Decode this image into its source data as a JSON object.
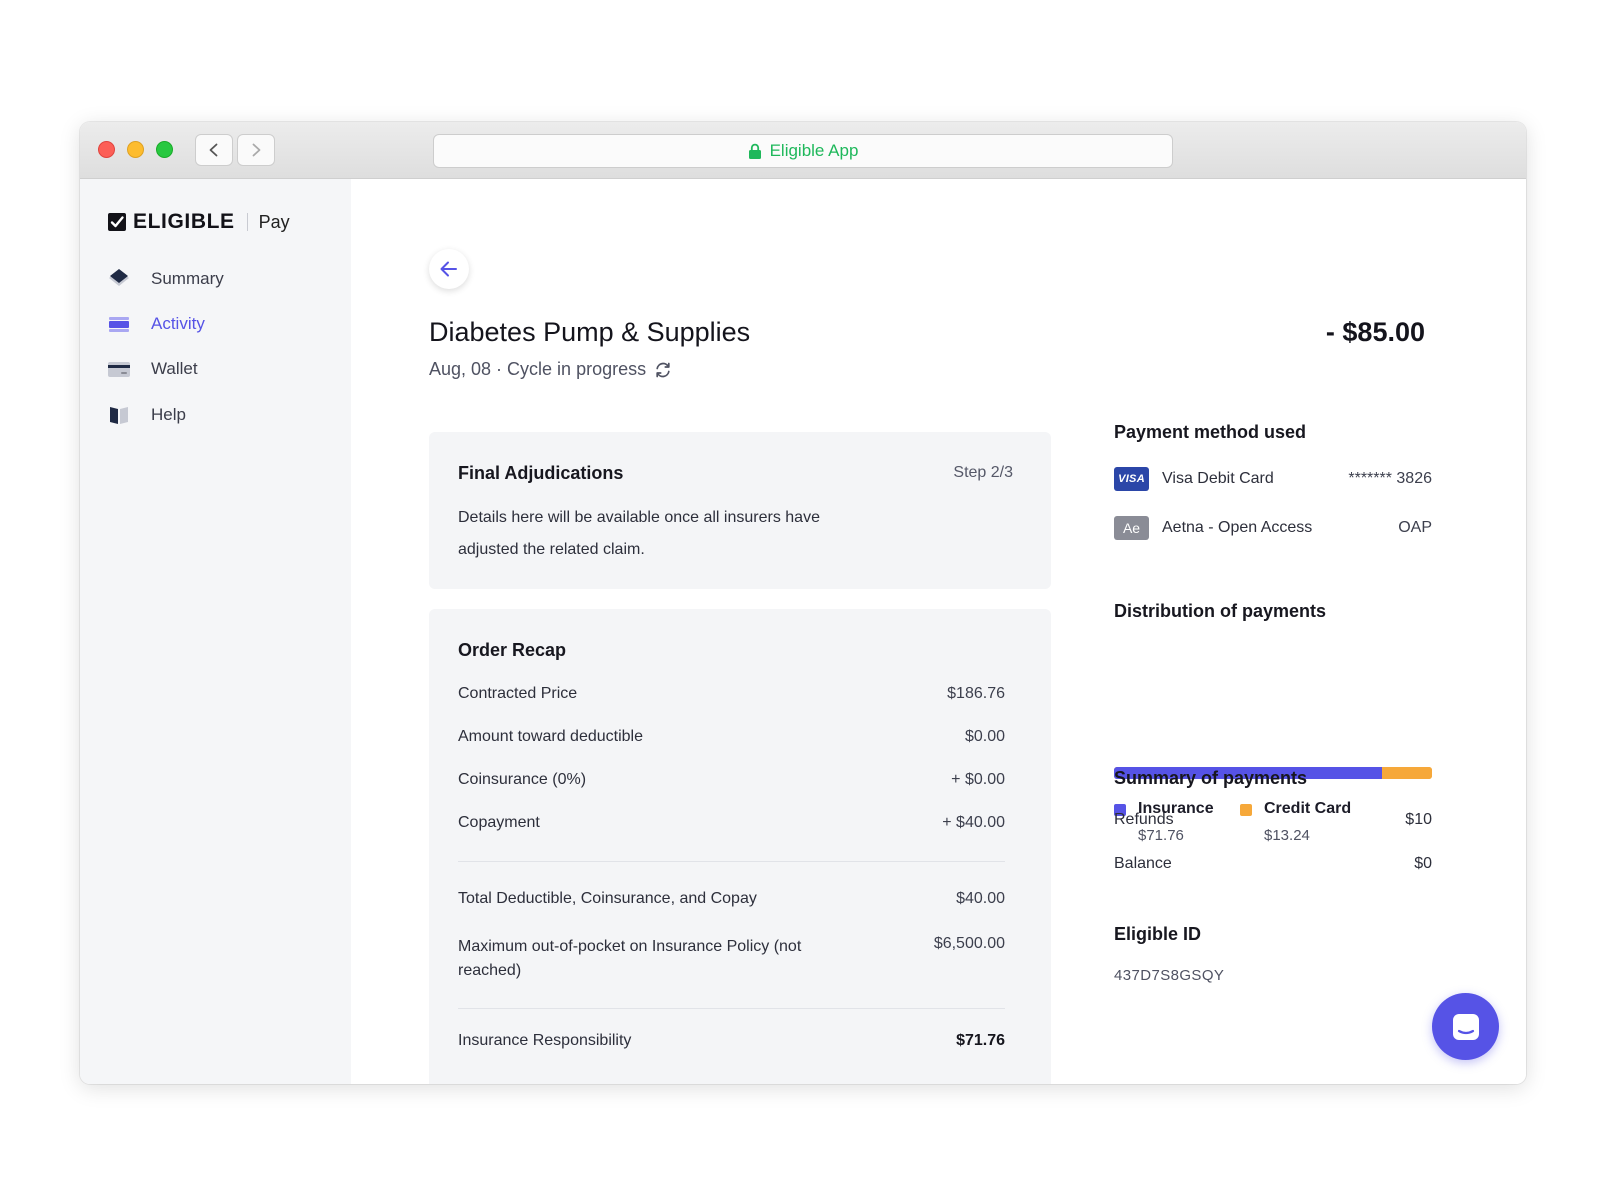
{
  "browser": {
    "url_label": "Eligible App"
  },
  "sidebar": {
    "brand_name": "ELIGIBLE",
    "brand_product": "Pay",
    "items": [
      {
        "label": "Summary",
        "icon": "layers-icon",
        "active": false
      },
      {
        "label": "Activity",
        "icon": "activity-icon",
        "active": true
      },
      {
        "label": "Wallet",
        "icon": "card-icon",
        "active": false
      },
      {
        "label": "Help",
        "icon": "book-icon",
        "active": false
      }
    ]
  },
  "header": {
    "title": "Diabetes Pump & Supplies",
    "amount": "- $85.00",
    "subtitle": "Aug, 08 · Cycle in progress"
  },
  "adjudication": {
    "title": "Final Adjudications",
    "step": "Step 2/3",
    "text": "Details here will be available once all insurers have adjusted the related claim."
  },
  "order_recap": {
    "title": "Order Recap",
    "rows": [
      {
        "label": "Contracted Price",
        "value": "$186.76"
      },
      {
        "label": "Amount toward deductible",
        "value": "$0.00"
      },
      {
        "label": "Coinsurance (0%)",
        "value": "+ $0.00"
      },
      {
        "label": "Copayment",
        "value": "+ $40.00"
      }
    ],
    "totals": [
      {
        "label": "Total Deductible, Coinsurance, and Copay",
        "value": "$40.00"
      },
      {
        "label": "Maximum out-of-pocket on Insurance Policy (not reached)",
        "value": "$6,500.00"
      }
    ],
    "responsibility": {
      "label": "Insurance Responsibility",
      "value": "$71.76"
    }
  },
  "payment_method": {
    "title": "Payment method used",
    "methods": [
      {
        "badge": "VISA",
        "name": "Visa Debit Card",
        "value": "******* 3826"
      },
      {
        "badge": "Ae",
        "name": "Aetna - Open Access",
        "value": "OAP"
      }
    ]
  },
  "distribution": {
    "title": "Distribution of payments",
    "insurance_fraction": 0.844,
    "credit_card_fraction": 0.156,
    "legend": [
      {
        "name": "Insurance",
        "value": "$71.76",
        "color": "#5653e6"
      },
      {
        "name": "Credit Card",
        "value": "$13.24",
        "color": "#f6a83a"
      }
    ]
  },
  "summary_payments": {
    "title": "Summary of payments",
    "rows": [
      {
        "label": "Refunds",
        "value": "$10"
      },
      {
        "label": "Balance",
        "value": "$0"
      }
    ]
  },
  "eligible_id": {
    "title": "Eligible ID",
    "value": "437D7S8GSQY"
  },
  "colors": {
    "accent": "#5653e6",
    "credit": "#f6a83a",
    "secure": "#1fb85b"
  }
}
